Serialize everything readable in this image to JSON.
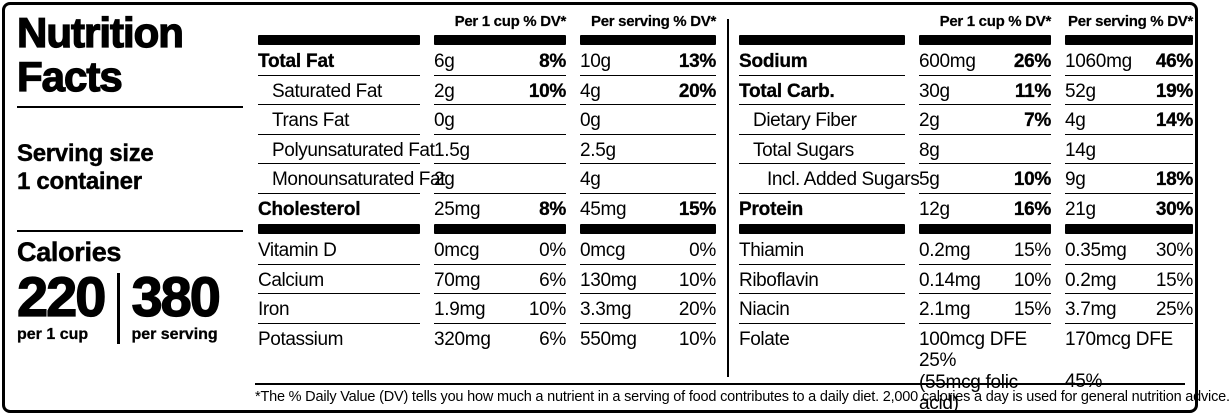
{
  "left_panel": {
    "title_line1": "Nutrition",
    "title_line2": "Facts",
    "serving_size_label": "Serving size",
    "serving_size_value": "1 container",
    "calories": {
      "label": "Calories",
      "per_cup_value": "220",
      "per_cup_caption": "per 1 cup",
      "per_serving_value": "380",
      "per_serving_caption": "per serving"
    }
  },
  "column_headers": {
    "per_cup": "Per 1 cup % DV*",
    "per_serving": "Per serving % DV*"
  },
  "nutrition_table_left": {
    "rows": [
      {
        "name": "Total Fat",
        "name_bold": true,
        "indent": 0,
        "per_cup_amount": "6g",
        "per_cup_dv": "8%",
        "per_serving_amount": "10g",
        "per_serving_dv": "13%",
        "dv_bold": true
      },
      {
        "name": "Saturated Fat",
        "indent": 1,
        "per_cup_amount": "2g",
        "per_cup_dv": "10%",
        "per_serving_amount": "4g",
        "per_serving_dv": "20%",
        "dv_bold": true
      },
      {
        "name": "Trans Fat",
        "indent": 1,
        "per_cup_amount": "0g",
        "per_cup_dv": "",
        "per_serving_amount": "0g",
        "per_serving_dv": ""
      },
      {
        "name": "Polyunsaturated Fat",
        "indent": 1,
        "per_cup_amount": "1.5g",
        "per_cup_dv": "",
        "per_serving_amount": "2.5g",
        "per_serving_dv": ""
      },
      {
        "name": "Monounsaturated Fat",
        "indent": 1,
        "per_cup_amount": "2g",
        "per_cup_dv": "",
        "per_serving_amount": "4g",
        "per_serving_dv": ""
      },
      {
        "name": "Cholesterol",
        "name_bold": true,
        "indent": 0,
        "per_cup_amount": "25mg",
        "per_cup_dv": "8%",
        "per_serving_amount": "45mg",
        "per_serving_dv": "15%",
        "dv_bold": true,
        "no_border": true,
        "bar_after": true
      },
      {
        "name": "Vitamin D",
        "indent": 0,
        "per_cup_amount": "0mcg",
        "per_cup_dv": "0%",
        "per_serving_amount": "0mcg",
        "per_serving_dv": "0%"
      },
      {
        "name": "Calcium",
        "indent": 0,
        "per_cup_amount": "70mg",
        "per_cup_dv": "6%",
        "per_serving_amount": "130mg",
        "per_serving_dv": "10%"
      },
      {
        "name": "Iron",
        "indent": 0,
        "per_cup_amount": "1.9mg",
        "per_cup_dv": "10%",
        "per_serving_amount": "3.3mg",
        "per_serving_dv": "20%"
      },
      {
        "name": "Potassium",
        "indent": 0,
        "per_cup_amount": "320mg",
        "per_cup_dv": "6%",
        "per_serving_amount": "550mg",
        "per_serving_dv": "10%",
        "no_border": true
      }
    ]
  },
  "nutrition_table_right": {
    "rows": [
      {
        "name": "Sodium",
        "name_bold": true,
        "indent": 0,
        "per_cup_amount": "600mg",
        "per_cup_dv": "26%",
        "per_serving_amount": "1060mg",
        "per_serving_dv": "46%",
        "dv_bold": true
      },
      {
        "name": "Total Carb.",
        "name_bold": true,
        "indent": 0,
        "per_cup_amount": "30g",
        "per_cup_dv": "11%",
        "per_serving_amount": "52g",
        "per_serving_dv": "19%",
        "dv_bold": true
      },
      {
        "name": "Dietary Fiber",
        "indent": 1,
        "per_cup_amount": "2g",
        "per_cup_dv": "7%",
        "per_serving_amount": "4g",
        "per_serving_dv": "14%",
        "dv_bold": true
      },
      {
        "name": "Total Sugars",
        "indent": 1,
        "per_cup_amount": "8g",
        "per_cup_dv": "",
        "per_serving_amount": "14g",
        "per_serving_dv": ""
      },
      {
        "name": "Incl. Added Sugars",
        "indent": 2,
        "per_cup_amount": "5g",
        "per_cup_dv": "10%",
        "per_serving_amount": "9g",
        "per_serving_dv": "18%",
        "dv_bold": true
      },
      {
        "name": "Protein",
        "name_bold": true,
        "indent": 0,
        "per_cup_amount": "12g",
        "per_cup_dv": "16%",
        "per_serving_amount": "21g",
        "per_serving_dv": "30%",
        "dv_bold": true,
        "no_border": true,
        "bar_after": true
      },
      {
        "name": "Thiamin",
        "indent": 0,
        "per_cup_amount": "0.2mg",
        "per_cup_dv": "15%",
        "per_serving_amount": "0.35mg",
        "per_serving_dv": "30%"
      },
      {
        "name": "Riboflavin",
        "indent": 0,
        "per_cup_amount": "0.14mg",
        "per_cup_dv": "10%",
        "per_serving_amount": "0.2mg",
        "per_serving_dv": "15%"
      },
      {
        "name": "Niacin",
        "indent": 0,
        "per_cup_amount": "2.1mg",
        "per_cup_dv": "15%",
        "per_serving_amount": "3.7mg",
        "per_serving_dv": "25%"
      },
      {
        "name": "Folate",
        "indent": 0,
        "per_cup_amount": "100mcg DFE",
        "per_cup_dv": "25%",
        "per_cup_note": "(55mcg folic acid)",
        "per_serving_amount": "170mcg DFE",
        "per_serving_dv": "45%",
        "no_border": true
      }
    ]
  },
  "footnote": "*The % Daily Value (DV) tells you how much a nutrient in a serving of food contributes to a daily diet. 2,000 calories a day is used for general nutrition advice."
}
